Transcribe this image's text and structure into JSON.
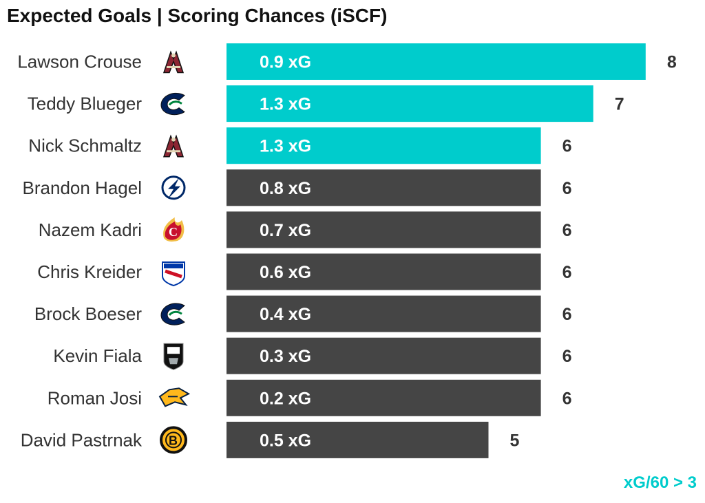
{
  "title": "Expected Goals | Scoring Chances (iSCF)",
  "footnote": "xG/60 > 3",
  "colors": {
    "highlight": "#00CCCC",
    "default": "#454545",
    "footnote": "#00CCCC",
    "value_text": "#333333"
  },
  "chart_data": {
    "type": "bar",
    "orientation": "horizontal",
    "xlim": [
      0,
      8
    ],
    "highlight_rule": "xG/60 > 3",
    "rows": [
      {
        "player": "Lawson Crouse",
        "team_icon": "coyotes-logo-icon",
        "iscf": 8,
        "xg_label": "0.9 xG",
        "highlight": true
      },
      {
        "player": "Teddy Blueger",
        "team_icon": "canucks-logo-icon",
        "iscf": 7,
        "xg_label": "1.3 xG",
        "highlight": true
      },
      {
        "player": "Nick Schmaltz",
        "team_icon": "coyotes-logo-icon",
        "iscf": 6,
        "xg_label": "1.3 xG",
        "highlight": true
      },
      {
        "player": "Brandon Hagel",
        "team_icon": "lightning-logo-icon",
        "iscf": 6,
        "xg_label": "0.8 xG",
        "highlight": false
      },
      {
        "player": "Nazem Kadri",
        "team_icon": "flames-logo-icon",
        "iscf": 6,
        "xg_label": "0.7 xG",
        "highlight": false
      },
      {
        "player": "Chris Kreider",
        "team_icon": "rangers-logo-icon",
        "iscf": 6,
        "xg_label": "0.6 xG",
        "highlight": false
      },
      {
        "player": "Brock Boeser",
        "team_icon": "canucks-logo-icon",
        "iscf": 6,
        "xg_label": "0.4 xG",
        "highlight": false
      },
      {
        "player": "Kevin Fiala",
        "team_icon": "kings-logo-icon",
        "iscf": 6,
        "xg_label": "0.3 xG",
        "highlight": false
      },
      {
        "player": "Roman Josi",
        "team_icon": "predators-logo-icon",
        "iscf": 6,
        "xg_label": "0.2 xG",
        "highlight": false
      },
      {
        "player": "David Pastrnak",
        "team_icon": "bruins-logo-icon",
        "iscf": 5,
        "xg_label": "0.5 xG",
        "highlight": false
      }
    ]
  }
}
